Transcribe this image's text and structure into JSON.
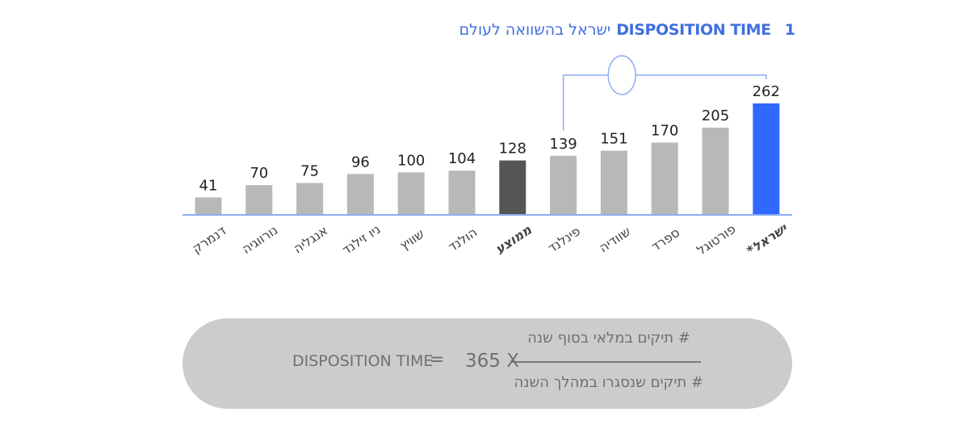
{
  "title": {
    "number": "1",
    "strong": "DISPOSITION TIME",
    "hebrew": "ישראל בהשוואה לעולם"
  },
  "chart_data": {
    "type": "bar",
    "categories": [
      "דנמרק",
      "נורווגיה",
      "אנגליה",
      "ניו זילנד",
      "שוויץ",
      "הולנד",
      "ממוצע",
      "פינלנד",
      "שוודיה",
      "ספרד",
      "פורטוגל",
      "ישראל*"
    ],
    "values": [
      41,
      70,
      75,
      96,
      100,
      104,
      128,
      139,
      151,
      170,
      205,
      262
    ],
    "highlight": {
      "average_index": 6,
      "israel_index": 11
    },
    "colors": {
      "default": "#b8b8b8",
      "average": "#555555",
      "israel": "#3168ff",
      "axis": "#8cacf2",
      "connector": "#8cacf2",
      "label": "#222222",
      "category": "#444444",
      "israel_label": "#3b68e6"
    },
    "ylim": [
      0,
      262
    ]
  },
  "formula": {
    "lhs": "DISPOSITION TIME",
    "equals": "=",
    "multiplier": "365 X",
    "numerator": "# תיקים במלאי בסוף שנה",
    "denominator": "# תיקים שנסגרו במהלך השנה"
  }
}
